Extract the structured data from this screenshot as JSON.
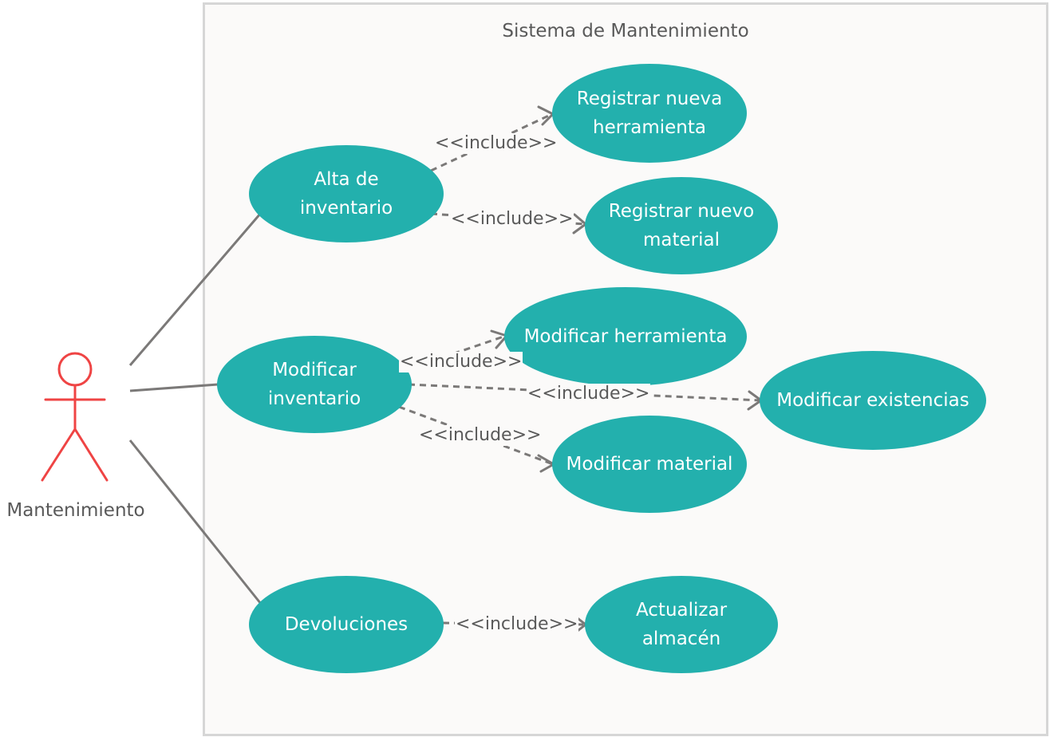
{
  "system": {
    "title": "Sistema de Mantenimiento"
  },
  "actor": {
    "name": "Mantenimiento",
    "color": "#ef4444"
  },
  "colors": {
    "usecase_fill": "#23b0ad",
    "line": "#7b7978"
  },
  "use_cases": {
    "alta": "Alta de inventario",
    "registrar_herramienta": "Registrar nueva herramienta",
    "registrar_material": "Registrar nuevo material",
    "modificar_inventario": "Modificar inventario",
    "modificar_herramienta": "Modificar herramienta",
    "modificar_existencias": "Modificar existencias",
    "modificar_material": "Modificar material",
    "devoluciones": "Devoluciones",
    "actualizar_almacen": "Actualizar almacén"
  },
  "relations": {
    "include": "<<include>>"
  }
}
